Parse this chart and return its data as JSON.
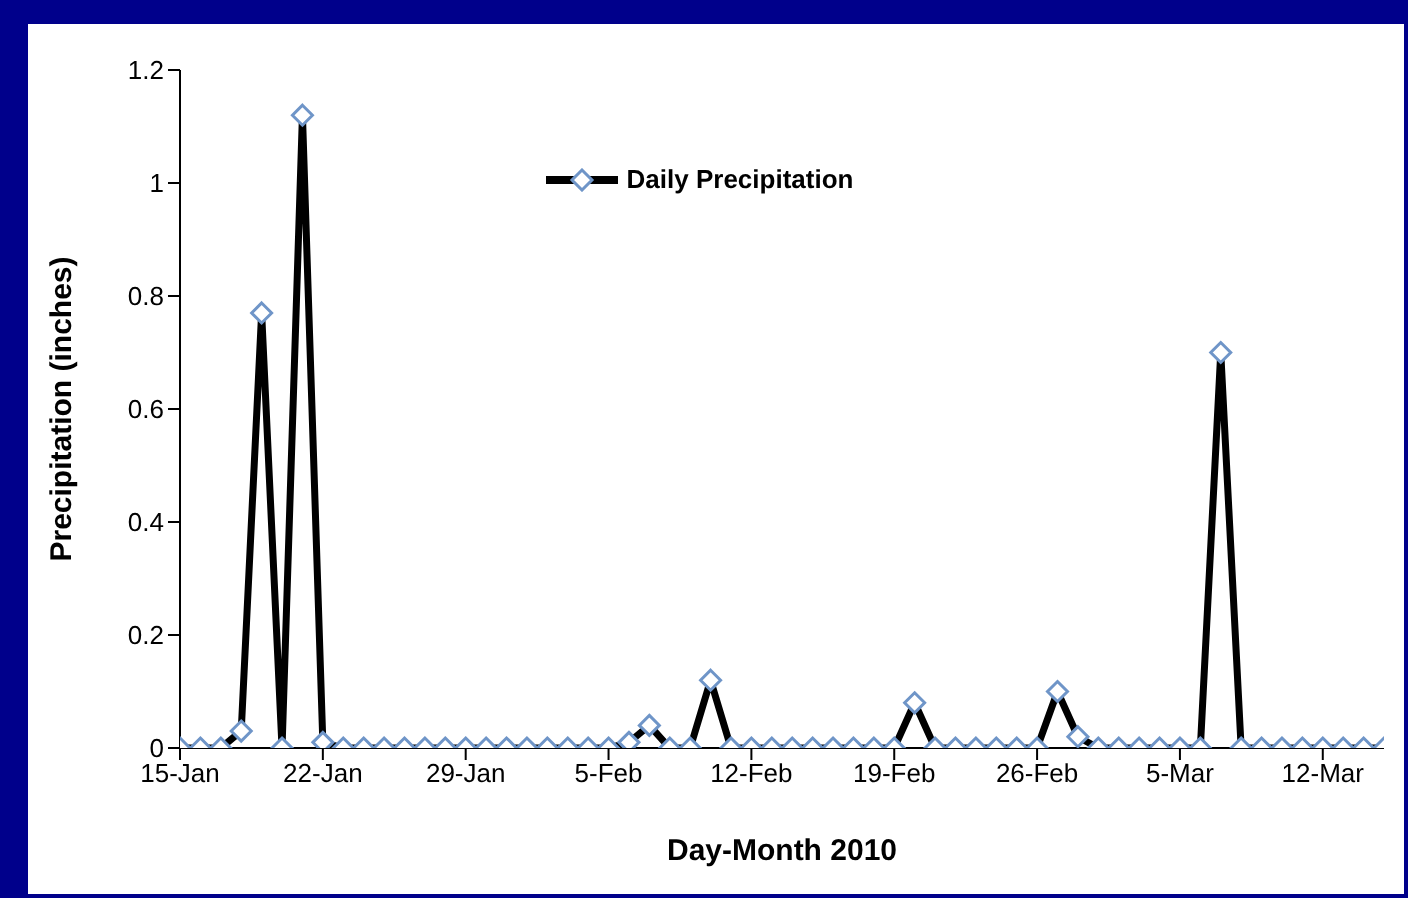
{
  "chart_data": {
    "type": "line",
    "xlabel": "Day-Month 2010",
    "ylabel": "Precipitation (inches)",
    "x": [
      "2010-01-15",
      "2010-01-16",
      "2010-01-17",
      "2010-01-18",
      "2010-01-19",
      "2010-01-20",
      "2010-01-21",
      "2010-01-22",
      "2010-01-23",
      "2010-01-24",
      "2010-01-25",
      "2010-01-26",
      "2010-01-27",
      "2010-01-28",
      "2010-01-29",
      "2010-01-30",
      "2010-01-31",
      "2010-02-01",
      "2010-02-02",
      "2010-02-03",
      "2010-02-04",
      "2010-02-05",
      "2010-02-06",
      "2010-02-07",
      "2010-02-08",
      "2010-02-09",
      "2010-02-10",
      "2010-02-11",
      "2010-02-12",
      "2010-02-13",
      "2010-02-14",
      "2010-02-15",
      "2010-02-16",
      "2010-02-17",
      "2010-02-18",
      "2010-02-19",
      "2010-02-20",
      "2010-02-21",
      "2010-02-22",
      "2010-02-23",
      "2010-02-24",
      "2010-02-25",
      "2010-02-26",
      "2010-02-27",
      "2010-02-28",
      "2010-03-01",
      "2010-03-02",
      "2010-03-03",
      "2010-03-04",
      "2010-03-05",
      "2010-03-06",
      "2010-03-07",
      "2010-03-08",
      "2010-03-09",
      "2010-03-10",
      "2010-03-11",
      "2010-03-12",
      "2010-03-13",
      "2010-03-14",
      "2010-03-15"
    ],
    "series": [
      {
        "name": "Daily Precipitation",
        "color": "#000000",
        "values": [
          0,
          0,
          0,
          0.03,
          0.77,
          0,
          1.12,
          0.01,
          0,
          0,
          0,
          0,
          0,
          0,
          0,
          0,
          0,
          0,
          0,
          0,
          0,
          0,
          0.01,
          0.04,
          0,
          0,
          0.12,
          0,
          0,
          0,
          0,
          0,
          0,
          0,
          0,
          0,
          0.08,
          0,
          0,
          0,
          0,
          0,
          0,
          0.1,
          0.02,
          0,
          0,
          0,
          0,
          0,
          0,
          0.7,
          0,
          0,
          0,
          0,
          0,
          0,
          0,
          0
        ]
      }
    ],
    "xlim": [
      "2010-01-15",
      "2010-03-15"
    ],
    "xticks": [
      {
        "value": "2010-01-15",
        "label": "15-Jan"
      },
      {
        "value": "2010-01-22",
        "label": "22-Jan"
      },
      {
        "value": "2010-01-29",
        "label": "29-Jan"
      },
      {
        "value": "2010-02-05",
        "label": "5-Feb"
      },
      {
        "value": "2010-02-12",
        "label": "12-Feb"
      },
      {
        "value": "2010-02-19",
        "label": "19-Feb"
      },
      {
        "value": "2010-02-26",
        "label": "26-Feb"
      },
      {
        "value": "2010-03-05",
        "label": "5-Mar"
      },
      {
        "value": "2010-03-12",
        "label": "12-Mar"
      }
    ],
    "ylim": [
      0,
      1.2
    ],
    "yticks": [
      0,
      0.2,
      0.4,
      0.6,
      0.8,
      1,
      1.2
    ],
    "grid": false,
    "legend": "top",
    "marker": "diamond",
    "line_style": "solid"
  }
}
